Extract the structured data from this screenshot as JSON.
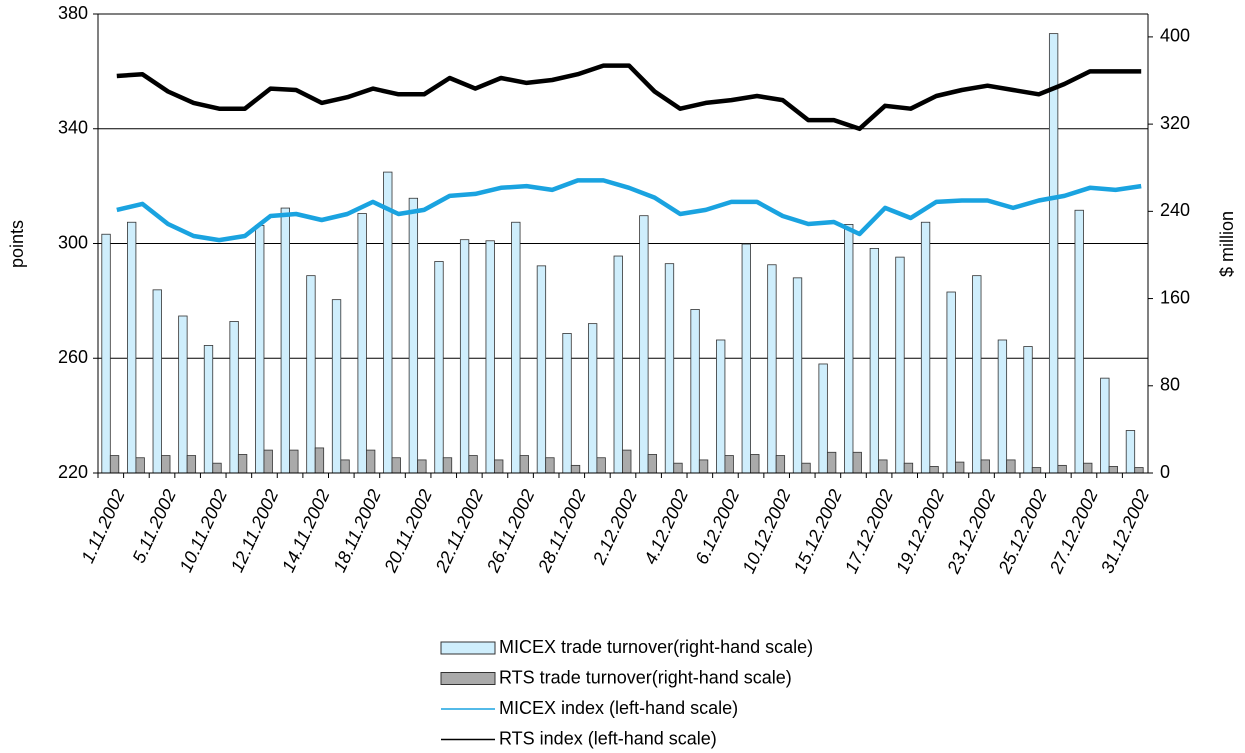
{
  "chart_data": {
    "type": "bar_line",
    "y_label": "points",
    "y2_label": "$ million",
    "categories": [
      "1.11.2002",
      null,
      "5.11.2002",
      null,
      "10.11.2002",
      null,
      "12.11.2002",
      null,
      "14.11.2002",
      null,
      "18.11.2002",
      null,
      "20.11.2002",
      null,
      "22.11.2002",
      null,
      "26.11.2002",
      null,
      "28.11.2002",
      null,
      "2.12.2002",
      null,
      "4.12.2002",
      null,
      "6.12.2002",
      null,
      "10.12.2002",
      null,
      "15.12.2002",
      null,
      "17.12.2002",
      null,
      "19.12.2002",
      null,
      "23.12.2002",
      null,
      "25.12.2002",
      null,
      "27.12.2002",
      null,
      "31.12.2002"
    ],
    "series": [
      {
        "name": "MICEX trade turnover(right-hand scale)",
        "kind": "bar",
        "axis": "y2",
        "color": "#cfeefc",
        "values": [
          219,
          230,
          168,
          144,
          117,
          139,
          227,
          243,
          181,
          159,
          238,
          276,
          252,
          194,
          214,
          213,
          230,
          190,
          128,
          137,
          199,
          236,
          192,
          150,
          122,
          210,
          191,
          179,
          100,
          228,
          206,
          198,
          230,
          166,
          181,
          122,
          116,
          403,
          241,
          87,
          39
        ]
      },
      {
        "name": "RTS trade turnover(right-hand scale)",
        "kind": "bar",
        "axis": "y2",
        "color": "#aaaaaa",
        "values": [
          16,
          14,
          16,
          16,
          9,
          17,
          21,
          21,
          23,
          12,
          21,
          14,
          12,
          14,
          16,
          12,
          16,
          14,
          7,
          14,
          21,
          17,
          9,
          12,
          16,
          17,
          16,
          9,
          19,
          19,
          12,
          9,
          6,
          10,
          12,
          12,
          5,
          7,
          9,
          6,
          5
        ]
      },
      {
        "name": "MICEX index (left-hand scale)",
        "kind": "line",
        "axis": "y",
        "color": "#1aa3e0",
        "values": [
          311.7,
          313.8,
          306.8,
          302.6,
          301.2,
          302.6,
          309.6,
          310.3,
          308.2,
          310.3,
          314.5,
          310.3,
          311.7,
          316.6,
          317.3,
          319.4,
          320,
          318.7,
          322,
          322,
          319.4,
          316,
          310.3,
          311.7,
          314.5,
          314.5,
          309.6,
          306.8,
          307.5,
          303.3,
          312.4,
          308.9,
          314.5,
          315,
          315,
          312.4,
          315,
          316.6,
          319.4,
          318.7,
          320
        ]
      },
      {
        "name": "RTS index (left-hand scale)",
        "kind": "line",
        "axis": "y",
        "color": "#000000",
        "values": [
          358.4,
          359,
          353,
          349,
          347,
          347,
          354,
          353.5,
          349,
          351,
          354,
          352,
          352,
          357.7,
          354,
          357.7,
          356,
          357,
          359,
          362,
          362,
          353,
          347,
          349,
          350,
          351.4,
          350,
          343,
          343,
          340,
          348,
          347,
          351.4,
          353.5,
          355,
          353.5,
          352,
          355.6,
          360,
          360,
          360
        ]
      }
    ],
    "ylim": [
      220,
      380
    ],
    "yticks": [
      220,
      260,
      300,
      340,
      380
    ],
    "y2lim": [
      0,
      421
    ],
    "y2ticks": [
      0,
      80,
      160,
      240,
      320,
      400
    ],
    "grid": true
  }
}
